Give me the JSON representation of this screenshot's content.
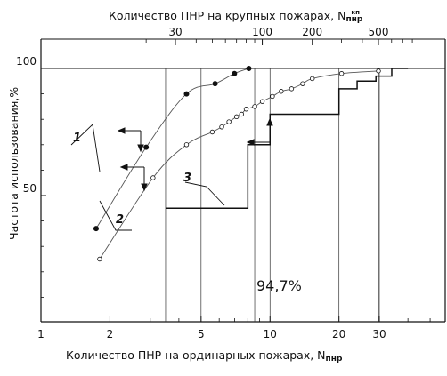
{
  "chart_data": {
    "type": "line",
    "xlabel_bottom": "Количество ПНР на ординарных пожарах, N",
    "xlabel_bottom_sub": "пнр",
    "xlabel_top": "Количество ПНР на крупных пожарах, N",
    "xlabel_top_sup": "кп",
    "xlabel_top_sub": "пнр",
    "ylabel": "Частота использования,%",
    "x_scale": "log",
    "bottom_axis": {
      "range": [
        1,
        60
      ],
      "ticks": [
        1,
        2,
        5,
        10,
        20,
        30
      ],
      "tick_labels": [
        "1",
        "2",
        "5",
        "10",
        "20",
        "30"
      ]
    },
    "top_axis": {
      "range": [
        10,
        900
      ],
      "ticks": [
        30,
        100,
        200,
        500
      ],
      "tick_labels": [
        "30",
        "100",
        "200",
        "500"
      ]
    },
    "y_axis": {
      "range": [
        0,
        100
      ],
      "ticks": [
        50,
        100
      ],
      "tick_labels": [
        "50",
        "100"
      ]
    },
    "annotation": "94,7%",
    "curve_labels": [
      "1",
      "2",
      "3"
    ],
    "series": [
      {
        "label": "1",
        "axis": "top",
        "marker": "filled",
        "x": [
          10,
          20,
          35,
          52,
          68,
          83
        ],
        "y": [
          37,
          69,
          90,
          94,
          98,
          100
        ]
      },
      {
        "label": "2",
        "axis": "top",
        "marker": "open",
        "x": [
          10.5,
          22,
          35,
          50,
          57,
          63,
          70,
          75,
          80,
          90,
          100,
          115,
          130,
          150,
          175,
          200,
          300,
          500
        ],
        "y": [
          25,
          57,
          70,
          75,
          77,
          79,
          81,
          82,
          84,
          85,
          87,
          89,
          91,
          92,
          94,
          96,
          98,
          99
        ]
      },
      {
        "label": "3",
        "axis": "bottom",
        "type": "step",
        "x": [
          3.5,
          8,
          8,
          10,
          10,
          20,
          20,
          24,
          24,
          29,
          29,
          34,
          34,
          40
        ],
        "y": [
          45,
          45,
          70,
          70,
          82,
          82,
          92,
          92,
          95,
          95,
          97,
          97,
          100,
          100
        ]
      }
    ]
  }
}
